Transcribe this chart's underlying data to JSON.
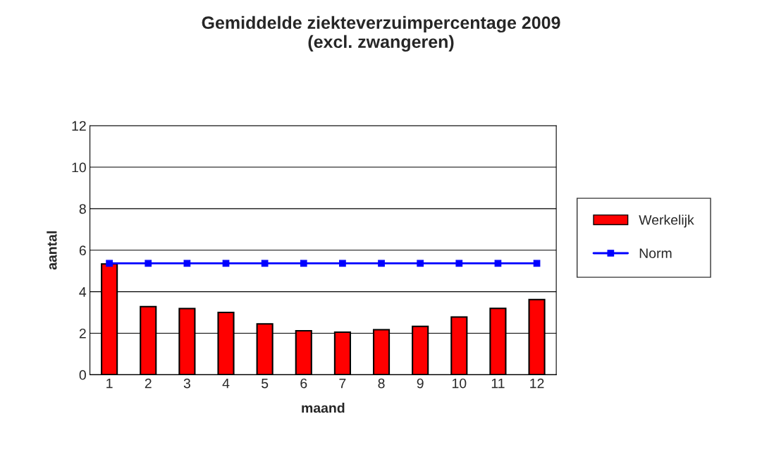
{
  "chart_data": {
    "type": "bar",
    "title": "Gemiddelde ziekteverzuimpercentage 2009\n(excl. zwangeren)",
    "xlabel": "maand",
    "ylabel": "aantal",
    "categories": [
      "1",
      "2",
      "3",
      "4",
      "5",
      "6",
      "7",
      "8",
      "9",
      "10",
      "11",
      "12"
    ],
    "series": [
      {
        "name": "Werkelijk",
        "color": "#ff0000",
        "values": [
          5.34,
          3.28,
          3.19,
          3.0,
          2.45,
          2.12,
          2.05,
          2.17,
          2.33,
          2.78,
          3.2,
          3.62
        ]
      },
      {
        "name": "Norm",
        "type": "line",
        "color": "#0000ff",
        "marker": "square",
        "values": [
          5.37,
          5.37,
          5.37,
          5.37,
          5.37,
          5.37,
          5.37,
          5.37,
          5.37,
          5.37,
          5.37,
          5.37
        ]
      }
    ],
    "ylim": [
      0,
      12
    ],
    "yticks": [
      0,
      2,
      4,
      6,
      8,
      10,
      12
    ],
    "grid": "y",
    "legend": "right"
  }
}
